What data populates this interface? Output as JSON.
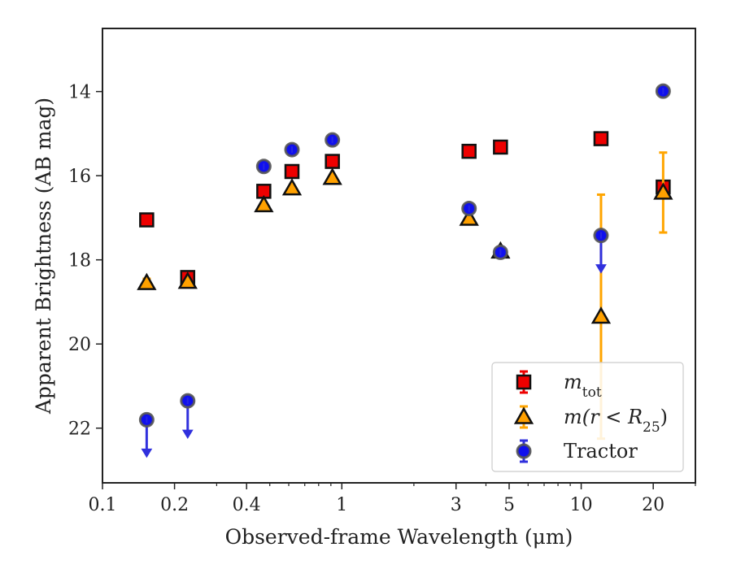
{
  "chart_data": {
    "type": "scatter",
    "xlabel": "Observed-frame Wavelength (μm)",
    "ylabel": "Apparent Brightness (AB mag)",
    "x_scale": "log",
    "xlim": [
      0.1,
      30
    ],
    "ylim": [
      23.3,
      12.5
    ],
    "y_inverted": true,
    "x_ticks": [
      {
        "value": 0.1,
        "label": "0.1"
      },
      {
        "value": 0.2,
        "label": "0.2"
      },
      {
        "value": 0.4,
        "label": "0.4"
      },
      {
        "value": 1,
        "label": "1"
      },
      {
        "value": 3,
        "label": "3"
      },
      {
        "value": 5,
        "label": "5"
      },
      {
        "value": 10,
        "label": "10"
      },
      {
        "value": 20,
        "label": "20"
      }
    ],
    "y_ticks": [
      {
        "value": 14,
        "label": "14"
      },
      {
        "value": 16,
        "label": "16"
      },
      {
        "value": 18,
        "label": "18"
      },
      {
        "value": 20,
        "label": "20"
      },
      {
        "value": 22,
        "label": "22"
      }
    ],
    "grid": false,
    "legend_position": "bottom-right",
    "series": [
      {
        "name": "m_tot",
        "legend_main": "m",
        "legend_sub": "tot",
        "marker": "square",
        "color": "#ee0000",
        "errcolor": "#ee0000",
        "points": [
          {
            "x": 0.153,
            "y": 17.05
          },
          {
            "x": 0.227,
            "y": 18.42
          },
          {
            "x": 0.472,
            "y": 16.37
          },
          {
            "x": 0.619,
            "y": 15.9
          },
          {
            "x": 0.913,
            "y": 15.66
          },
          {
            "x": 3.4,
            "y": 15.42
          },
          {
            "x": 4.6,
            "y": 15.32
          },
          {
            "x": 12.1,
            "y": 15.12
          },
          {
            "x": 22.0,
            "y": 16.27
          }
        ]
      },
      {
        "name": "m(r < R25)",
        "legend_main": "m(r < R",
        "legend_sub": "25",
        "legend_tail": ")",
        "marker": "triangle",
        "color": "#ffa000",
        "errcolor": "#ffa500",
        "points": [
          {
            "x": 0.153,
            "y": 18.55,
            "err": 0.1
          },
          {
            "x": 0.227,
            "y": 18.52
          },
          {
            "x": 0.472,
            "y": 16.7
          },
          {
            "x": 0.619,
            "y": 16.3
          },
          {
            "x": 0.913,
            "y": 16.05
          },
          {
            "x": 3.4,
            "y": 17.02
          },
          {
            "x": 4.6,
            "y": 17.8
          },
          {
            "x": 12.1,
            "y": 19.35,
            "err": 2.9
          },
          {
            "x": 22.0,
            "y": 16.4,
            "err": 0.95
          }
        ]
      },
      {
        "name": "Tractor",
        "legend_main": "Tractor",
        "marker": "circle",
        "color": "#1010ee",
        "errcolor": "#3030dd",
        "points": [
          {
            "x": 0.153,
            "y": 21.8,
            "upper_limit": true
          },
          {
            "x": 0.227,
            "y": 21.35,
            "upper_limit": true
          },
          {
            "x": 0.472,
            "y": 15.78
          },
          {
            "x": 0.619,
            "y": 15.38
          },
          {
            "x": 0.913,
            "y": 15.15
          },
          {
            "x": 3.4,
            "y": 16.78
          },
          {
            "x": 4.6,
            "y": 17.82
          },
          {
            "x": 12.1,
            "y": 17.42,
            "upper_limit": true
          },
          {
            "x": 22.0,
            "y": 13.99
          }
        ]
      }
    ]
  }
}
